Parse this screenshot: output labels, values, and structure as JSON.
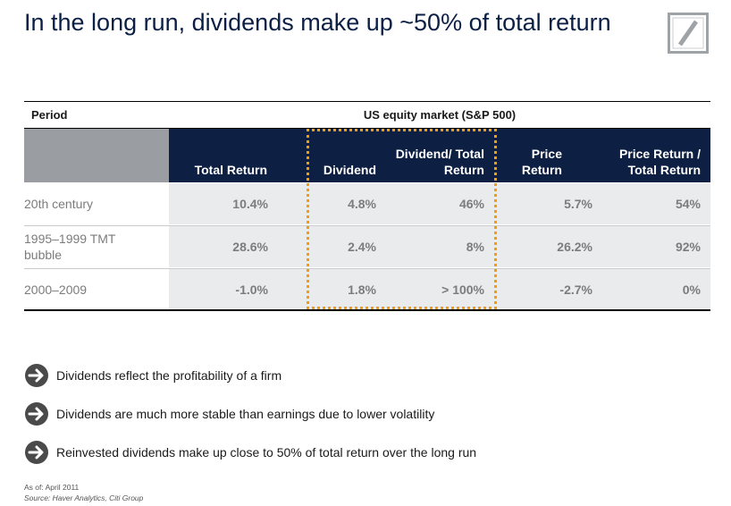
{
  "title": "In the long run, dividends make up ~50% of total return",
  "logo": {
    "icon": "deutsche-bank-logo-icon",
    "color": "#9ea3a8"
  },
  "table": {
    "period_header": "Period",
    "group_header": "US equity market (S&P 500)",
    "columns": [
      "Total Return",
      "Dividend",
      "Dividend/ Total Return",
      "Price Return",
      "Price Return / Total Return"
    ],
    "rows": [
      {
        "period": "20th century",
        "values": [
          "10.4%",
          "4.8%",
          "46%",
          "5.7%",
          "54%"
        ]
      },
      {
        "period": "1995–1999 TMT bubble",
        "values": [
          "28.6%",
          "2.4%",
          "8%",
          "26.2%",
          "92%"
        ]
      },
      {
        "period": "2000–2009",
        "values": [
          "-1.0%",
          "1.8%",
          "> 100%",
          "-2.7%",
          "0%"
        ]
      }
    ]
  },
  "bullets": [
    {
      "icon": "arrow-right-icon",
      "text": "Dividends reflect the profitability of a firm"
    },
    {
      "icon": "arrow-right-icon",
      "text": "Dividends are much more stable than earnings due to lower volatility"
    },
    {
      "icon": "arrow-right-icon",
      "text": "Reinvested dividends make up close to 50% of total return over the long run"
    }
  ],
  "footnote": {
    "as_of": "As of: April 2011",
    "source": "Source: Haver Analytics, Citi Group"
  },
  "colors": {
    "navy": "#0d1f42",
    "grey_header": "#9a9ea3",
    "band": "#e9ebed",
    "highlight": "#f39c12",
    "bullet_icon": "#4a4a4a"
  }
}
